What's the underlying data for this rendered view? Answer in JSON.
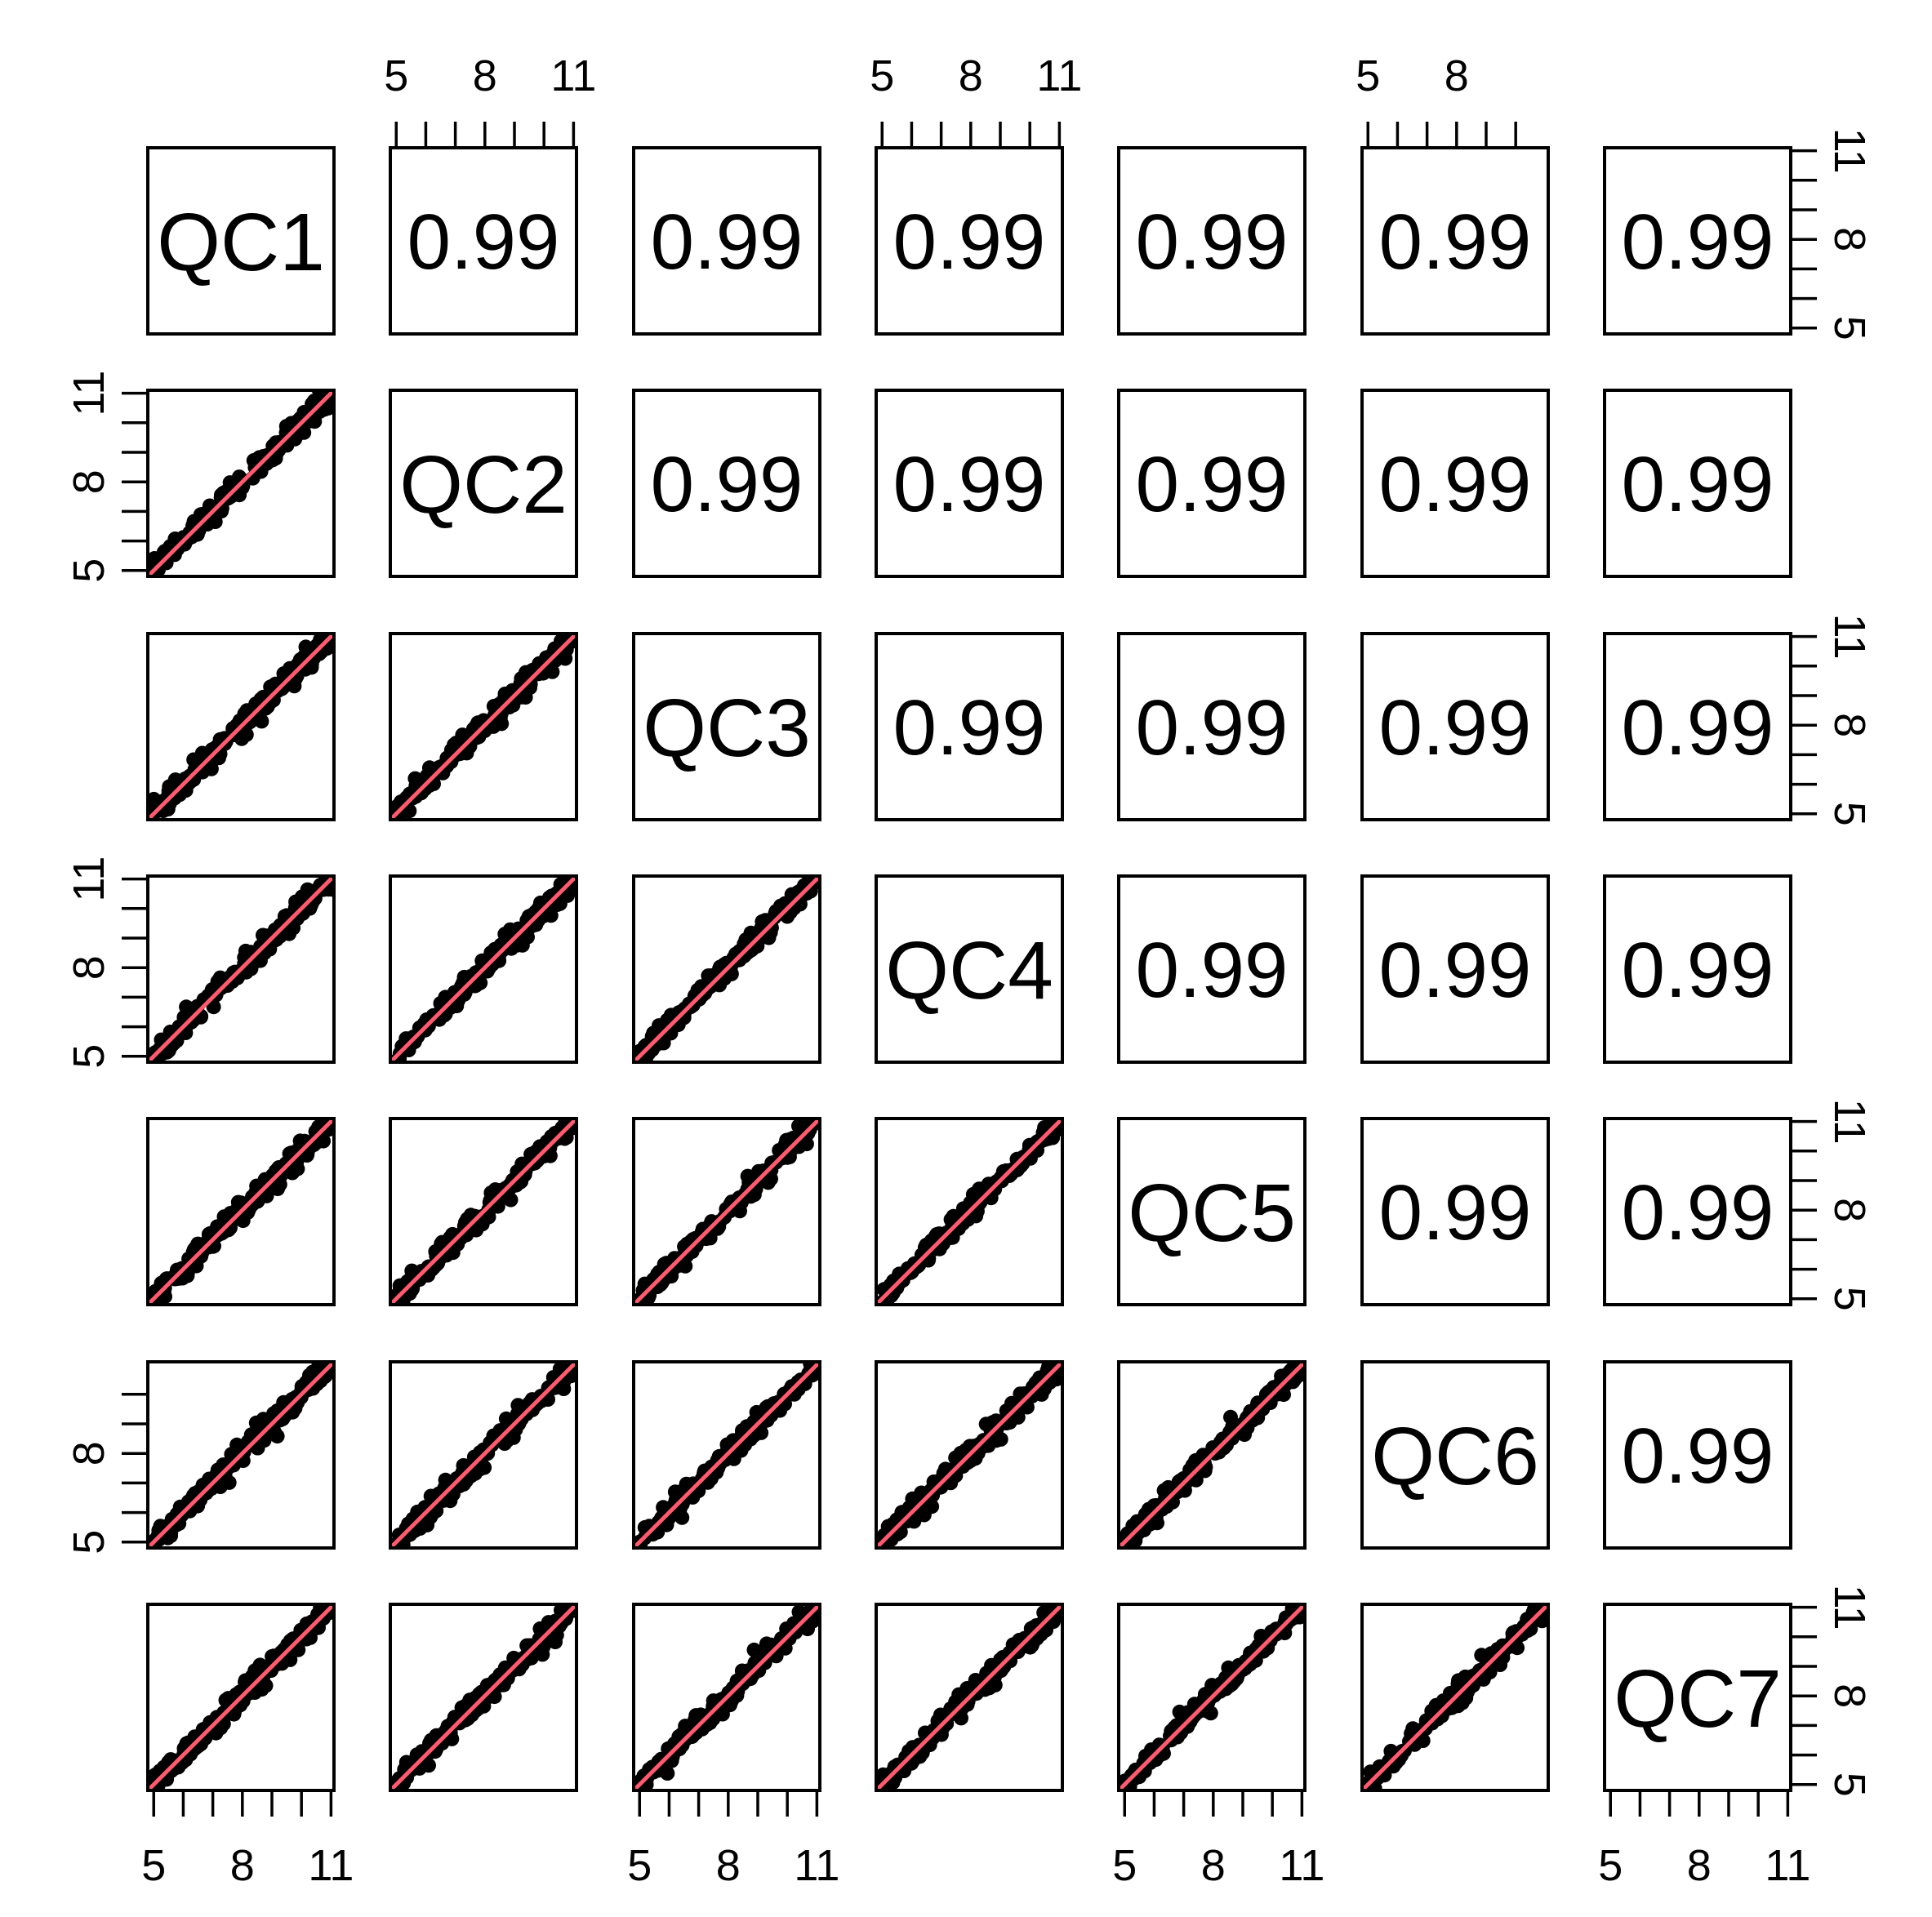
{
  "chart_data": {
    "type": "scatter",
    "layout": "scatterplot-matrix",
    "variables": [
      "QC1",
      "QC2",
      "QC3",
      "QC4",
      "QC5",
      "QC6",
      "QC7"
    ],
    "lower_panels": "scatter of pairwise values with y = x reference line",
    "upper_panels": "correlation coefficient",
    "correlations": [
      [
        "",
        "0.99",
        "0.99",
        "0.99",
        "0.99",
        "0.99",
        "0.99"
      ],
      [
        "0.99",
        "",
        "0.99",
        "0.99",
        "0.99",
        "0.99",
        "0.99"
      ],
      [
        "0.99",
        "0.99",
        "",
        "0.99",
        "0.99",
        "0.99",
        "0.99"
      ],
      [
        "0.99",
        "0.99",
        "0.99",
        "",
        "0.99",
        "0.99",
        "0.99"
      ],
      [
        "0.99",
        "0.99",
        "0.99",
        "0.99",
        "",
        "0.99",
        "0.99"
      ],
      [
        "0.99",
        "0.99",
        "0.99",
        "0.99",
        "0.99",
        "",
        "0.99"
      ],
      [
        "0.99",
        "0.99",
        "0.99",
        "0.99",
        "0.99",
        "0.99",
        ""
      ]
    ],
    "axis_range": [
      4.8,
      11.1
    ],
    "major_ticks": [
      5,
      8,
      11
    ],
    "tick_labels": [
      "5",
      "8",
      "11"
    ],
    "tick_labels_short": [
      "5",
      "8"
    ],
    "reference_line": {
      "slope": 1,
      "intercept": 0
    },
    "colors": {
      "points": "#000000",
      "reference_line": "#ff5a6e"
    }
  }
}
